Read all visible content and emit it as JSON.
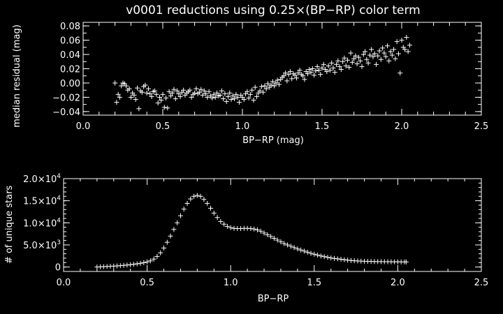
{
  "chart_data": [
    {
      "type": "scatter",
      "title": "v0001 reductions using 0.25×(BP−RP) color term",
      "xlabel": "BP−RP (mag)",
      "ylabel": "median residual (mag)",
      "xlim": [
        0.0,
        2.5
      ],
      "ylim": [
        -0.045,
        0.085
      ],
      "x_ticks": [
        "0.0",
        "0.5",
        "1.0",
        "1.5",
        "2.0",
        "2.5"
      ],
      "y_ticks": [
        "−0.04",
        "−0.02",
        "0.00",
        "0.02",
        "0.04",
        "0.06",
        "0.08"
      ],
      "marker": "+",
      "color": "#ffffff",
      "x": [
        0.2,
        0.21,
        0.22,
        0.23,
        0.24,
        0.25,
        0.26,
        0.27,
        0.28,
        0.29,
        0.3,
        0.31,
        0.32,
        0.33,
        0.34,
        0.35,
        0.36,
        0.37,
        0.38,
        0.39,
        0.4,
        0.41,
        0.42,
        0.43,
        0.44,
        0.45,
        0.46,
        0.47,
        0.48,
        0.49,
        0.5,
        0.51,
        0.52,
        0.53,
        0.54,
        0.55,
        0.56,
        0.57,
        0.58,
        0.59,
        0.6,
        0.61,
        0.62,
        0.63,
        0.64,
        0.65,
        0.66,
        0.67,
        0.68,
        0.69,
        0.7,
        0.71,
        0.72,
        0.73,
        0.74,
        0.75,
        0.76,
        0.77,
        0.78,
        0.79,
        0.8,
        0.81,
        0.82,
        0.83,
        0.84,
        0.85,
        0.86,
        0.87,
        0.88,
        0.89,
        0.9,
        0.91,
        0.92,
        0.93,
        0.94,
        0.95,
        0.96,
        0.97,
        0.98,
        0.99,
        1.0,
        1.01,
        1.02,
        1.03,
        1.04,
        1.05,
        1.06,
        1.07,
        1.08,
        1.09,
        1.1,
        1.11,
        1.12,
        1.13,
        1.14,
        1.15,
        1.16,
        1.17,
        1.18,
        1.19,
        1.2,
        1.21,
        1.22,
        1.23,
        1.24,
        1.25,
        1.26,
        1.27,
        1.28,
        1.29,
        1.3,
        1.31,
        1.32,
        1.33,
        1.34,
        1.35,
        1.36,
        1.37,
        1.38,
        1.39,
        1.4,
        1.41,
        1.42,
        1.43,
        1.44,
        1.45,
        1.46,
        1.47,
        1.48,
        1.49,
        1.5,
        1.51,
        1.52,
        1.53,
        1.54,
        1.55,
        1.56,
        1.57,
        1.58,
        1.59,
        1.6,
        1.61,
        1.62,
        1.63,
        1.64,
        1.65,
        1.66,
        1.67,
        1.68,
        1.69,
        1.7,
        1.71,
        1.72,
        1.73,
        1.74,
        1.75,
        1.76,
        1.77,
        1.78,
        1.79,
        1.8,
        1.81,
        1.82,
        1.83,
        1.84,
        1.85,
        1.86,
        1.87,
        1.88,
        1.89,
        1.9,
        1.91,
        1.92,
        1.93,
        1.94,
        1.95,
        1.96,
        1.97,
        1.98,
        1.99,
        2.0,
        2.01,
        2.02,
        2.03,
        2.04,
        2.05
      ],
      "y": [
        0.0,
        -0.027,
        -0.016,
        -0.02,
        -0.004,
        0.0,
        -0.001,
        -0.004,
        -0.01,
        -0.008,
        -0.02,
        -0.014,
        -0.017,
        -0.023,
        -0.007,
        -0.036,
        -0.011,
        -0.013,
        -0.005,
        -0.003,
        -0.014,
        -0.008,
        -0.015,
        -0.019,
        -0.012,
        -0.011,
        -0.016,
        -0.028,
        -0.02,
        -0.024,
        -0.016,
        -0.034,
        -0.021,
        -0.035,
        -0.012,
        -0.018,
        -0.014,
        -0.009,
        -0.022,
        -0.011,
        -0.015,
        -0.019,
        -0.013,
        -0.01,
        -0.017,
        -0.014,
        -0.012,
        -0.01,
        -0.02,
        -0.016,
        -0.014,
        -0.008,
        -0.015,
        -0.013,
        -0.009,
        -0.017,
        -0.011,
        -0.015,
        -0.02,
        -0.012,
        -0.018,
        -0.021,
        -0.016,
        -0.02,
        -0.014,
        -0.018,
        -0.017,
        -0.011,
        -0.022,
        -0.015,
        -0.026,
        -0.019,
        -0.014,
        -0.023,
        -0.018,
        -0.022,
        -0.016,
        -0.02,
        -0.027,
        -0.017,
        -0.02,
        -0.023,
        -0.015,
        -0.012,
        -0.021,
        -0.016,
        -0.01,
        -0.024,
        -0.006,
        -0.019,
        -0.014,
        -0.011,
        -0.005,
        -0.013,
        -0.004,
        -0.008,
        -0.001,
        -0.006,
        -0.003,
        0.002,
        -0.004,
        0.0,
        0.004,
        -0.002,
        0.005,
        0.008,
        0.01,
        0.014,
        0.003,
        0.012,
        0.016,
        0.006,
        0.013,
        0.011,
        0.007,
        0.014,
        0.018,
        0.012,
        0.01,
        0.005,
        0.016,
        0.013,
        0.019,
        0.015,
        0.02,
        0.011,
        0.017,
        0.023,
        0.018,
        0.012,
        0.021,
        0.026,
        0.019,
        0.016,
        0.024,
        0.018,
        0.028,
        0.021,
        0.015,
        0.026,
        0.031,
        0.023,
        0.019,
        0.03,
        0.035,
        0.024,
        0.032,
        0.022,
        0.042,
        0.029,
        0.034,
        0.038,
        0.027,
        0.036,
        0.031,
        0.023,
        0.04,
        0.044,
        0.033,
        0.028,
        0.039,
        0.047,
        0.037,
        0.041,
        0.026,
        0.038,
        0.045,
        0.033,
        0.049,
        0.042,
        0.037,
        0.052,
        0.031,
        0.044,
        0.039,
        0.047,
        0.034,
        0.058,
        0.041,
        0.014,
        0.06,
        0.05,
        0.047,
        0.064,
        0.044,
        0.053
      ]
    },
    {
      "type": "scatter",
      "title": "",
      "xlabel": "BP−RP",
      "ylabel": "# of unique stars",
      "xlim": [
        0.0,
        2.5
      ],
      "ylim": [
        -1000,
        20000
      ],
      "x_ticks": [
        "0.0",
        "0.5",
        "1.0",
        "1.5",
        "2.0",
        "2.5"
      ],
      "y_ticks": [
        {
          "value": 0,
          "label": "0"
        },
        {
          "value": 5000,
          "mant": "5.0×10",
          "exp": "3"
        },
        {
          "value": 10000,
          "mant": "1.0×10",
          "exp": "4"
        },
        {
          "value": 15000,
          "mant": "1.5×10",
          "exp": "4"
        },
        {
          "value": 20000,
          "mant": "2.0×10",
          "exp": "4"
        }
      ],
      "marker": "+",
      "color": "#ffffff",
      "x": [
        0.2,
        0.22,
        0.24,
        0.26,
        0.28,
        0.3,
        0.32,
        0.34,
        0.36,
        0.38,
        0.4,
        0.42,
        0.44,
        0.46,
        0.48,
        0.5,
        0.52,
        0.54,
        0.56,
        0.58,
        0.6,
        0.62,
        0.64,
        0.66,
        0.68,
        0.7,
        0.72,
        0.74,
        0.76,
        0.78,
        0.8,
        0.82,
        0.84,
        0.86,
        0.88,
        0.9,
        0.92,
        0.94,
        0.96,
        0.98,
        1.0,
        1.02,
        1.04,
        1.06,
        1.08,
        1.1,
        1.12,
        1.14,
        1.16,
        1.18,
        1.2,
        1.22,
        1.24,
        1.26,
        1.28,
        1.3,
        1.32,
        1.34,
        1.36,
        1.38,
        1.4,
        1.42,
        1.44,
        1.46,
        1.48,
        1.5,
        1.52,
        1.54,
        1.56,
        1.58,
        1.6,
        1.62,
        1.64,
        1.66,
        1.68,
        1.7,
        1.72,
        1.74,
        1.76,
        1.78,
        1.8,
        1.82,
        1.84,
        1.86,
        1.88,
        1.9,
        1.92,
        1.94,
        1.96,
        1.98,
        2.0,
        2.02,
        2.04,
        2.05
      ],
      "y": [
        0,
        40,
        80,
        120,
        160,
        200,
        250,
        310,
        380,
        450,
        530,
        620,
        720,
        840,
        980,
        1150,
        1400,
        1800,
        2400,
        3200,
        4300,
        5600,
        7000,
        8500,
        10000,
        11600,
        13100,
        14400,
        15400,
        16000,
        16200,
        16000,
        15300,
        14400,
        13300,
        12200,
        11200,
        10300,
        9700,
        9200,
        8900,
        8750,
        8700,
        8700,
        8750,
        8750,
        8700,
        8600,
        8400,
        8100,
        7700,
        7300,
        6900,
        6500,
        6100,
        5700,
        5300,
        5000,
        4700,
        4400,
        4100,
        3850,
        3600,
        3350,
        3100,
        2900,
        2700,
        2500,
        2350,
        2200,
        2050,
        1950,
        1850,
        1750,
        1650,
        1550,
        1480,
        1420,
        1370,
        1330,
        1300,
        1280,
        1260,
        1240,
        1230,
        1220,
        1210,
        1200,
        1190,
        1180,
        1170,
        1160,
        1150,
        1140
      ]
    }
  ]
}
